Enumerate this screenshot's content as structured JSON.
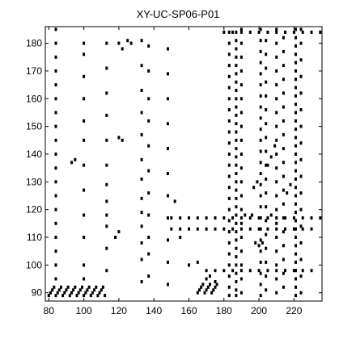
{
  "chart_data": {
    "type": "scatter",
    "title": "XY-UC-SP06-P01",
    "xlabel": "",
    "ylabel": "",
    "xlim": [
      78,
      236
    ],
    "ylim": [
      87,
      186
    ],
    "x_ticks": [
      80,
      100,
      120,
      140,
      160,
      180,
      200,
      220
    ],
    "y_ticks": [
      90,
      100,
      110,
      120,
      130,
      140,
      150,
      160,
      170,
      180
    ],
    "grid": false,
    "marker_color": "#000000",
    "background_color": "#ffffff",
    "description_of_marks": "binary recurrence-style dot plot; vertical streaks near x=84,100,113,133,137,148 and dense columns around x=183-192, 200-205, 208-215, 220-224; horizontal bands near y=89-92, 97-100, 110-120, 184-186",
    "points": [
      [
        80,
        89
      ],
      [
        81,
        90
      ],
      [
        82,
        91
      ],
      [
        83,
        92
      ],
      [
        84,
        89
      ],
      [
        85,
        90
      ],
      [
        86,
        91
      ],
      [
        87,
        92
      ],
      [
        88,
        89
      ],
      [
        89,
        90
      ],
      [
        90,
        91
      ],
      [
        91,
        92
      ],
      [
        92,
        89
      ],
      [
        93,
        90
      ],
      [
        94,
        91
      ],
      [
        95,
        92
      ],
      [
        96,
        89
      ],
      [
        97,
        90
      ],
      [
        98,
        91
      ],
      [
        99,
        92
      ],
      [
        100,
        89
      ],
      [
        101,
        90
      ],
      [
        102,
        91
      ],
      [
        103,
        92
      ],
      [
        104,
        89
      ],
      [
        105,
        90
      ],
      [
        106,
        91
      ],
      [
        107,
        92
      ],
      [
        108,
        89
      ],
      [
        109,
        90
      ],
      [
        110,
        91
      ],
      [
        111,
        92
      ],
      [
        112,
        89
      ],
      [
        84,
        95
      ],
      [
        84,
        100
      ],
      [
        84,
        105
      ],
      [
        84,
        110
      ],
      [
        84,
        115
      ],
      [
        84,
        120
      ],
      [
        84,
        125
      ],
      [
        84,
        130
      ],
      [
        84,
        135
      ],
      [
        84,
        140
      ],
      [
        84,
        145
      ],
      [
        84,
        150
      ],
      [
        84,
        155
      ],
      [
        84,
        160
      ],
      [
        84,
        165
      ],
      [
        84,
        170
      ],
      [
        84,
        175
      ],
      [
        84,
        180
      ],
      [
        84,
        185
      ],
      [
        100,
        95
      ],
      [
        100,
        100
      ],
      [
        100,
        110
      ],
      [
        100,
        118
      ],
      [
        100,
        127
      ],
      [
        100,
        136
      ],
      [
        100,
        145
      ],
      [
        100,
        152
      ],
      [
        100,
        160
      ],
      [
        100,
        168
      ],
      [
        100,
        176
      ],
      [
        100,
        180
      ],
      [
        113,
        98
      ],
      [
        113,
        106
      ],
      [
        113,
        114
      ],
      [
        113,
        118
      ],
      [
        113,
        123
      ],
      [
        113,
        129
      ],
      [
        113,
        136
      ],
      [
        113,
        145
      ],
      [
        113,
        154
      ],
      [
        113,
        162
      ],
      [
        113,
        171
      ],
      [
        113,
        180
      ],
      [
        133,
        94
      ],
      [
        133,
        102
      ],
      [
        133,
        108
      ],
      [
        133,
        114
      ],
      [
        133,
        119
      ],
      [
        133,
        124
      ],
      [
        133,
        131
      ],
      [
        133,
        138
      ],
      [
        133,
        147
      ],
      [
        133,
        155
      ],
      [
        133,
        163
      ],
      [
        133,
        172
      ],
      [
        133,
        181
      ],
      [
        137,
        96
      ],
      [
        137,
        104
      ],
      [
        137,
        110
      ],
      [
        137,
        118
      ],
      [
        137,
        126
      ],
      [
        137,
        134
      ],
      [
        137,
        143
      ],
      [
        137,
        152
      ],
      [
        137,
        160
      ],
      [
        137,
        170
      ],
      [
        137,
        179
      ],
      [
        148,
        93
      ],
      [
        148,
        101
      ],
      [
        148,
        109
      ],
      [
        148,
        117
      ],
      [
        148,
        125
      ],
      [
        148,
        133
      ],
      [
        148,
        142
      ],
      [
        148,
        151
      ],
      [
        148,
        160
      ],
      [
        148,
        169
      ],
      [
        148,
        178
      ],
      [
        165,
        90
      ],
      [
        166,
        91
      ],
      [
        167,
        92
      ],
      [
        168,
        93
      ],
      [
        169,
        90
      ],
      [
        170,
        91
      ],
      [
        171,
        92
      ],
      [
        172,
        93
      ],
      [
        173,
        90
      ],
      [
        174,
        91
      ],
      [
        175,
        92
      ],
      [
        176,
        93
      ],
      [
        183,
        89
      ],
      [
        183,
        92
      ],
      [
        183,
        96
      ],
      [
        183,
        100
      ],
      [
        183,
        104
      ],
      [
        183,
        108
      ],
      [
        183,
        112
      ],
      [
        183,
        116
      ],
      [
        183,
        120
      ],
      [
        183,
        124
      ],
      [
        183,
        128
      ],
      [
        183,
        132
      ],
      [
        183,
        136
      ],
      [
        183,
        140
      ],
      [
        183,
        144
      ],
      [
        183,
        148
      ],
      [
        183,
        152
      ],
      [
        183,
        156
      ],
      [
        183,
        160
      ],
      [
        183,
        164
      ],
      [
        183,
        168
      ],
      [
        183,
        172
      ],
      [
        183,
        176
      ],
      [
        183,
        180
      ],
      [
        183,
        184
      ],
      [
        187,
        89
      ],
      [
        187,
        91
      ],
      [
        187,
        94
      ],
      [
        187,
        97
      ],
      [
        187,
        100
      ],
      [
        187,
        103
      ],
      [
        187,
        106
      ],
      [
        187,
        109
      ],
      [
        187,
        112
      ],
      [
        187,
        115
      ],
      [
        187,
        118
      ],
      [
        187,
        121
      ],
      [
        187,
        124
      ],
      [
        187,
        127
      ],
      [
        187,
        130
      ],
      [
        187,
        133
      ],
      [
        187,
        136
      ],
      [
        187,
        139
      ],
      [
        187,
        142
      ],
      [
        187,
        145
      ],
      [
        187,
        148
      ],
      [
        187,
        151
      ],
      [
        187,
        154
      ],
      [
        187,
        157
      ],
      [
        187,
        160
      ],
      [
        187,
        163
      ],
      [
        187,
        166
      ],
      [
        187,
        169
      ],
      [
        187,
        172
      ],
      [
        187,
        175
      ],
      [
        187,
        178
      ],
      [
        187,
        181
      ],
      [
        187,
        184
      ],
      [
        190,
        90
      ],
      [
        190,
        95
      ],
      [
        190,
        100
      ],
      [
        190,
        105
      ],
      [
        190,
        110
      ],
      [
        190,
        115
      ],
      [
        190,
        120
      ],
      [
        190,
        125
      ],
      [
        190,
        130
      ],
      [
        190,
        135
      ],
      [
        190,
        140
      ],
      [
        190,
        145
      ],
      [
        190,
        150
      ],
      [
        190,
        155
      ],
      [
        190,
        160
      ],
      [
        190,
        165
      ],
      [
        190,
        170
      ],
      [
        190,
        175
      ],
      [
        190,
        180
      ],
      [
        190,
        185
      ],
      [
        201,
        89
      ],
      [
        201,
        93
      ],
      [
        201,
        97
      ],
      [
        201,
        101
      ],
      [
        201,
        105
      ],
      [
        201,
        109
      ],
      [
        201,
        113
      ],
      [
        201,
        117
      ],
      [
        201,
        121
      ],
      [
        201,
        125
      ],
      [
        201,
        129
      ],
      [
        201,
        133
      ],
      [
        201,
        137
      ],
      [
        201,
        141
      ],
      [
        201,
        145
      ],
      [
        201,
        149
      ],
      [
        201,
        153
      ],
      [
        201,
        157
      ],
      [
        201,
        161
      ],
      [
        201,
        165
      ],
      [
        201,
        169
      ],
      [
        201,
        173
      ],
      [
        201,
        177
      ],
      [
        201,
        181
      ],
      [
        201,
        185
      ],
      [
        204,
        91
      ],
      [
        204,
        96
      ],
      [
        204,
        101
      ],
      [
        204,
        106
      ],
      [
        204,
        111
      ],
      [
        204,
        116
      ],
      [
        204,
        121
      ],
      [
        204,
        126
      ],
      [
        204,
        131
      ],
      [
        204,
        136
      ],
      [
        204,
        141
      ],
      [
        204,
        146
      ],
      [
        204,
        151
      ],
      [
        204,
        156
      ],
      [
        204,
        161
      ],
      [
        204,
        166
      ],
      [
        204,
        171
      ],
      [
        204,
        176
      ],
      [
        204,
        181
      ],
      [
        210,
        90
      ],
      [
        210,
        95
      ],
      [
        210,
        100
      ],
      [
        210,
        105
      ],
      [
        210,
        110
      ],
      [
        210,
        115
      ],
      [
        210,
        120
      ],
      [
        210,
        125
      ],
      [
        210,
        130
      ],
      [
        210,
        135
      ],
      [
        210,
        140
      ],
      [
        210,
        145
      ],
      [
        210,
        150
      ],
      [
        210,
        155
      ],
      [
        210,
        160
      ],
      [
        210,
        165
      ],
      [
        210,
        170
      ],
      [
        210,
        175
      ],
      [
        210,
        180
      ],
      [
        210,
        185
      ],
      [
        214,
        92
      ],
      [
        214,
        97
      ],
      [
        214,
        102
      ],
      [
        214,
        107
      ],
      [
        214,
        112
      ],
      [
        214,
        117
      ],
      [
        214,
        122
      ],
      [
        214,
        127
      ],
      [
        214,
        132
      ],
      [
        214,
        137
      ],
      [
        214,
        142
      ],
      [
        214,
        147
      ],
      [
        214,
        152
      ],
      [
        214,
        157
      ],
      [
        214,
        162
      ],
      [
        214,
        167
      ],
      [
        214,
        172
      ],
      [
        214,
        177
      ],
      [
        214,
        182
      ],
      [
        221,
        89
      ],
      [
        221,
        92
      ],
      [
        221,
        95
      ],
      [
        221,
        98
      ],
      [
        221,
        101
      ],
      [
        221,
        104
      ],
      [
        221,
        107
      ],
      [
        221,
        110
      ],
      [
        221,
        113
      ],
      [
        221,
        116
      ],
      [
        221,
        119
      ],
      [
        221,
        122
      ],
      [
        221,
        125
      ],
      [
        221,
        128
      ],
      [
        221,
        131
      ],
      [
        221,
        134
      ],
      [
        221,
        137
      ],
      [
        221,
        140
      ],
      [
        221,
        143
      ],
      [
        221,
        146
      ],
      [
        221,
        149
      ],
      [
        221,
        152
      ],
      [
        221,
        155
      ],
      [
        221,
        158
      ],
      [
        221,
        161
      ],
      [
        221,
        164
      ],
      [
        221,
        167
      ],
      [
        221,
        170
      ],
      [
        221,
        173
      ],
      [
        221,
        176
      ],
      [
        221,
        179
      ],
      [
        221,
        182
      ],
      [
        221,
        185
      ],
      [
        224,
        90
      ],
      [
        224,
        96
      ],
      [
        224,
        102
      ],
      [
        224,
        108
      ],
      [
        224,
        114
      ],
      [
        224,
        120
      ],
      [
        224,
        126
      ],
      [
        224,
        132
      ],
      [
        224,
        138
      ],
      [
        224,
        144
      ],
      [
        224,
        150
      ],
      [
        224,
        156
      ],
      [
        224,
        162
      ],
      [
        224,
        168
      ],
      [
        224,
        174
      ],
      [
        224,
        180
      ],
      [
        224,
        185
      ],
      [
        150,
        117
      ],
      [
        155,
        117
      ],
      [
        160,
        117
      ],
      [
        165,
        117
      ],
      [
        170,
        117
      ],
      [
        175,
        117
      ],
      [
        180,
        117
      ],
      [
        185,
        117
      ],
      [
        190,
        117
      ],
      [
        195,
        117
      ],
      [
        200,
        117
      ],
      [
        205,
        117
      ],
      [
        210,
        117
      ],
      [
        215,
        117
      ],
      [
        220,
        117
      ],
      [
        225,
        117
      ],
      [
        230,
        117
      ],
      [
        235,
        117
      ],
      [
        150,
        113
      ],
      [
        155,
        113
      ],
      [
        160,
        113
      ],
      [
        165,
        113
      ],
      [
        170,
        113
      ],
      [
        175,
        113
      ],
      [
        180,
        113
      ],
      [
        185,
        113
      ],
      [
        190,
        113
      ],
      [
        195,
        113
      ],
      [
        200,
        113
      ],
      [
        205,
        113
      ],
      [
        210,
        113
      ],
      [
        215,
        113
      ],
      [
        220,
        113
      ],
      [
        225,
        113
      ],
      [
        230,
        113
      ],
      [
        170,
        98
      ],
      [
        175,
        98
      ],
      [
        180,
        98
      ],
      [
        185,
        98
      ],
      [
        190,
        98
      ],
      [
        195,
        98
      ],
      [
        200,
        98
      ],
      [
        205,
        98
      ],
      [
        210,
        98
      ],
      [
        215,
        98
      ],
      [
        220,
        98
      ],
      [
        225,
        98
      ],
      [
        230,
        98
      ],
      [
        180,
        184
      ],
      [
        185,
        184
      ],
      [
        190,
        184
      ],
      [
        195,
        184
      ],
      [
        200,
        184
      ],
      [
        205,
        184
      ],
      [
        210,
        184
      ],
      [
        215,
        184
      ],
      [
        220,
        184
      ],
      [
        225,
        184
      ],
      [
        230,
        184
      ],
      [
        235,
        184
      ],
      [
        120,
        180
      ],
      [
        122,
        178
      ],
      [
        125,
        181
      ],
      [
        127,
        180
      ],
      [
        93,
        137
      ],
      [
        95,
        138
      ],
      [
        120,
        146
      ],
      [
        122,
        145
      ],
      [
        152,
        123
      ],
      [
        120,
        112
      ],
      [
        118,
        110
      ],
      [
        155,
        110
      ],
      [
        160,
        100
      ],
      [
        165,
        101
      ],
      [
        170,
        95
      ],
      [
        172,
        96
      ],
      [
        175,
        94
      ],
      [
        205,
        136
      ],
      [
        207,
        139
      ],
      [
        209,
        143
      ],
      [
        197,
        128
      ],
      [
        199,
        130
      ],
      [
        216,
        126
      ],
      [
        218,
        129
      ],
      [
        198,
        108
      ],
      [
        200,
        107
      ],
      [
        202,
        108
      ],
      [
        192,
        118
      ],
      [
        196,
        118
      ],
      [
        207,
        118
      ]
    ]
  }
}
